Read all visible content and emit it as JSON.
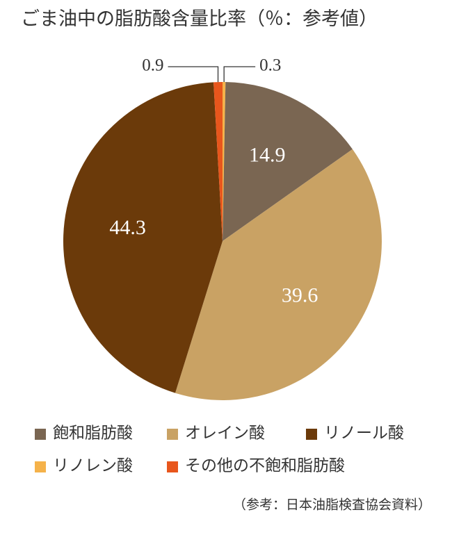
{
  "chart_data": {
    "type": "pie",
    "title": "ごま油中の脂肪酸含量比率（％：参考値）",
    "categories": [
      "リノレン酸",
      "飽和脂肪酸",
      "オレイン酸",
      "リノール酸",
      "その他の不飽和脂肪酸"
    ],
    "values": [
      0.3,
      14.9,
      39.6,
      44.3,
      0.9
    ],
    "colors": [
      "#f5b24a",
      "#7a6652",
      "#c9a264",
      "#6b3a0a",
      "#e8561c"
    ],
    "source": "（参考：日本油脂検査協会資料）"
  }
}
